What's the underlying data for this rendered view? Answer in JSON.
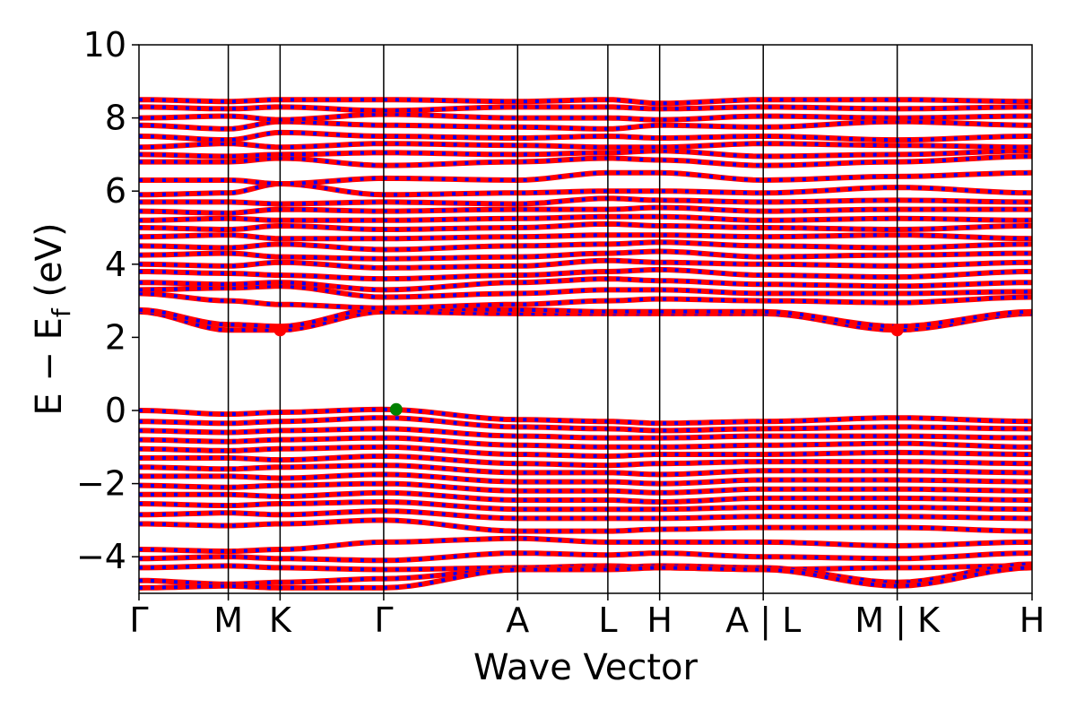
{
  "chart_data": {
    "type": "line",
    "title": "",
    "xlabel": "Wave Vector",
    "ylabel_main": "E − E",
    "ylabel_sub": "f",
    "ylabel_unit": " (eV)",
    "ylim": [
      -5,
      10
    ],
    "y_ticks": [
      -4,
      -2,
      0,
      2,
      4,
      6,
      8,
      10
    ],
    "y_tick_labels": [
      "−4",
      "−2",
      "0",
      "2",
      "4",
      "6",
      "8",
      "10"
    ],
    "x_range": [
      0,
      10
    ],
    "high_symmetry_points": [
      {
        "label": "Γ",
        "x": 0.0
      },
      {
        "label": "M",
        "x": 1.0
      },
      {
        "label": "K",
        "x": 1.58
      },
      {
        "label": "Γ",
        "x": 2.74
      },
      {
        "label": "A",
        "x": 4.24
      },
      {
        "label": "L",
        "x": 5.25
      },
      {
        "label": "H",
        "x": 5.83
      },
      {
        "label": "A | L",
        "x": 6.99
      },
      {
        "label": "M | K",
        "x": 8.49
      },
      {
        "label": "H",
        "x": 10.0
      }
    ],
    "series": [
      {
        "spin": "up",
        "color": "#ff0000"
      },
      {
        "spin": "down",
        "color": "#0000ff"
      }
    ],
    "conduction_band_minimum": [
      {
        "x": 1.58,
        "y": 2.2,
        "color": "#ff0000"
      },
      {
        "x": 8.49,
        "y": 2.2,
        "color": "#ff0000"
      }
    ],
    "valence_band_maximum": [
      {
        "x": 2.88,
        "y": 0.03,
        "color": "#008000"
      }
    ],
    "bands": [
      {
        "kind": "cb",
        "shape": "cbm",
        "y": [
          2.7,
          2.2,
          2.2,
          2.7,
          2.65,
          2.65,
          2.65,
          2.65,
          2.2,
          2.65
        ]
      },
      {
        "kind": "cb",
        "shape": "cbm",
        "y": [
          2.75,
          2.35,
          2.3,
          2.8,
          2.75,
          2.7,
          2.7,
          2.7,
          2.3,
          2.7
        ]
      },
      {
        "kind": "cb",
        "y": [
          3.2,
          3.0,
          2.9,
          2.8,
          2.9,
          3.0,
          3.05,
          3.0,
          2.95,
          3.1
        ]
      },
      {
        "kind": "cb",
        "y": [
          3.3,
          3.35,
          3.4,
          3.1,
          3.2,
          3.3,
          3.3,
          3.2,
          3.2,
          3.25
        ]
      },
      {
        "kind": "cb",
        "y": [
          3.5,
          3.45,
          3.5,
          3.3,
          3.5,
          3.6,
          3.55,
          3.45,
          3.4,
          3.5
        ]
      },
      {
        "kind": "cb",
        "y": [
          3.8,
          3.75,
          3.7,
          3.6,
          3.7,
          3.8,
          3.85,
          3.7,
          3.65,
          3.8
        ]
      },
      {
        "kind": "cb",
        "y": [
          4.0,
          3.95,
          4.05,
          3.9,
          3.95,
          4.1,
          4.05,
          4.0,
          3.95,
          4.05
        ]
      },
      {
        "kind": "cb",
        "y": [
          4.25,
          4.3,
          4.2,
          4.15,
          4.2,
          4.3,
          4.35,
          4.2,
          4.25,
          4.3
        ]
      },
      {
        "kind": "cb",
        "y": [
          4.5,
          4.45,
          4.55,
          4.4,
          4.5,
          4.55,
          4.6,
          4.5,
          4.45,
          4.55
        ]
      },
      {
        "kind": "cb",
        "y": [
          4.75,
          4.8,
          4.7,
          4.7,
          4.75,
          4.8,
          4.8,
          4.75,
          4.8,
          4.7
        ]
      },
      {
        "kind": "cb",
        "y": [
          5.0,
          4.95,
          5.05,
          4.95,
          5.0,
          5.1,
          5.05,
          5.0,
          4.95,
          5.05
        ]
      },
      {
        "kind": "cb",
        "y": [
          5.2,
          5.25,
          5.2,
          5.2,
          5.25,
          5.3,
          5.3,
          5.2,
          5.25,
          5.2
        ]
      },
      {
        "kind": "cb",
        "y": [
          5.45,
          5.4,
          5.5,
          5.45,
          5.5,
          5.5,
          5.55,
          5.45,
          5.5,
          5.5
        ]
      },
      {
        "kind": "cb",
        "y": [
          5.7,
          5.7,
          5.65,
          5.7,
          5.65,
          5.8,
          5.75,
          5.7,
          5.75,
          5.7
        ]
      },
      {
        "kind": "cb",
        "y": [
          5.9,
          5.95,
          6.2,
          5.9,
          5.95,
          6.0,
          6.0,
          5.95,
          6.1,
          5.95
        ]
      },
      {
        "kind": "cb",
        "y": [
          6.3,
          6.3,
          6.2,
          6.35,
          6.3,
          6.5,
          6.5,
          6.3,
          6.4,
          6.5
        ]
      },
      {
        "kind": "cb",
        "y": [
          6.8,
          6.8,
          6.9,
          6.7,
          6.8,
          6.9,
          6.85,
          6.7,
          6.8,
          6.95
        ]
      },
      {
        "kind": "cb",
        "y": [
          7.0,
          6.95,
          7.0,
          7.05,
          7.0,
          7.05,
          7.1,
          6.95,
          7.0,
          7.1
        ]
      },
      {
        "kind": "cb",
        "y": [
          7.2,
          7.3,
          7.2,
          7.3,
          7.25,
          7.2,
          7.2,
          7.3,
          7.25,
          7.2
        ]
      },
      {
        "kind": "cb",
        "y": [
          7.5,
          7.4,
          7.6,
          7.5,
          7.45,
          7.5,
          7.45,
          7.5,
          7.4,
          7.5
        ]
      },
      {
        "kind": "cb",
        "y": [
          7.8,
          7.7,
          7.9,
          7.8,
          7.75,
          7.7,
          7.8,
          7.75,
          7.9,
          7.8
        ]
      },
      {
        "kind": "cb",
        "y": [
          8.0,
          8.05,
          7.95,
          8.1,
          8.0,
          8.0,
          7.95,
          8.05,
          8.0,
          8.05
        ]
      },
      {
        "kind": "cb",
        "y": [
          8.3,
          8.25,
          8.3,
          8.2,
          8.3,
          8.3,
          8.25,
          8.3,
          8.25,
          8.3
        ]
      },
      {
        "kind": "cb",
        "y": [
          8.5,
          8.45,
          8.5,
          8.5,
          8.45,
          8.5,
          8.4,
          8.5,
          8.5,
          8.45
        ]
      },
      {
        "kind": "vb",
        "y": [
          0.0,
          -0.1,
          -0.05,
          0.03,
          -0.25,
          -0.3,
          -0.35,
          -0.3,
          -0.2,
          -0.3
        ]
      },
      {
        "kind": "vb",
        "y": [
          -0.3,
          -0.35,
          -0.3,
          -0.2,
          -0.45,
          -0.5,
          -0.55,
          -0.5,
          -0.45,
          -0.5
        ]
      },
      {
        "kind": "vb",
        "y": [
          -0.55,
          -0.6,
          -0.55,
          -0.5,
          -0.7,
          -0.75,
          -0.75,
          -0.7,
          -0.7,
          -0.75
        ]
      },
      {
        "kind": "vb",
        "y": [
          -0.8,
          -0.85,
          -0.8,
          -0.75,
          -0.95,
          -1.0,
          -1.0,
          -0.95,
          -0.9,
          -1.0
        ]
      },
      {
        "kind": "vb",
        "y": [
          -1.05,
          -1.1,
          -1.05,
          -1.0,
          -1.2,
          -1.25,
          -1.2,
          -1.2,
          -1.15,
          -1.2
        ]
      },
      {
        "kind": "vb",
        "y": [
          -1.3,
          -1.3,
          -1.35,
          -1.25,
          -1.45,
          -1.5,
          -1.45,
          -1.4,
          -1.4,
          -1.45
        ]
      },
      {
        "kind": "vb",
        "y": [
          -1.55,
          -1.6,
          -1.55,
          -1.5,
          -1.7,
          -1.7,
          -1.75,
          -1.65,
          -1.65,
          -1.7
        ]
      },
      {
        "kind": "vb",
        "y": [
          -1.8,
          -1.8,
          -1.85,
          -1.75,
          -1.95,
          -1.95,
          -2.0,
          -1.9,
          -1.9,
          -1.95
        ]
      },
      {
        "kind": "vb",
        "y": [
          -2.05,
          -2.1,
          -2.05,
          -2.0,
          -2.2,
          -2.2,
          -2.25,
          -2.15,
          -2.15,
          -2.2
        ]
      },
      {
        "kind": "vb",
        "y": [
          -2.3,
          -2.3,
          -2.35,
          -2.25,
          -2.45,
          -2.45,
          -2.5,
          -2.4,
          -2.4,
          -2.45
        ]
      },
      {
        "kind": "vb",
        "y": [
          -2.55,
          -2.6,
          -2.55,
          -2.5,
          -2.7,
          -2.7,
          -2.7,
          -2.65,
          -2.65,
          -2.7
        ]
      },
      {
        "kind": "vb",
        "y": [
          -2.85,
          -2.8,
          -2.85,
          -2.75,
          -2.95,
          -2.95,
          -2.95,
          -2.9,
          -2.9,
          -2.95
        ]
      },
      {
        "kind": "vb",
        "y": [
          -3.1,
          -3.15,
          -3.1,
          -3.0,
          -3.3,
          -3.3,
          -3.25,
          -3.2,
          -3.2,
          -3.3
        ]
      },
      {
        "kind": "vb",
        "y": [
          -3.8,
          -3.85,
          -3.8,
          -3.6,
          -3.5,
          -3.6,
          -3.6,
          -3.6,
          -3.7,
          -3.6
        ]
      },
      {
        "kind": "vb",
        "y": [
          -4.05,
          -4.0,
          -4.05,
          -4.1,
          -3.9,
          -3.95,
          -3.9,
          -4.0,
          -4.05,
          -3.9
        ]
      },
      {
        "kind": "vb",
        "y": [
          -4.3,
          -4.25,
          -4.3,
          -4.35,
          -4.3,
          -4.25,
          -4.3,
          -4.35,
          -4.3,
          -4.25
        ]
      },
      {
        "kind": "vb",
        "y": [
          -4.65,
          -4.75,
          -4.7,
          -4.6,
          -4.35,
          -4.3,
          -4.25,
          -4.3,
          -4.7,
          -4.2
        ]
      },
      {
        "kind": "vb",
        "y": [
          -4.85,
          -4.8,
          -4.85,
          -4.85,
          -4.35,
          -4.35,
          -4.3,
          -4.35,
          -4.8,
          -4.3
        ]
      }
    ]
  }
}
